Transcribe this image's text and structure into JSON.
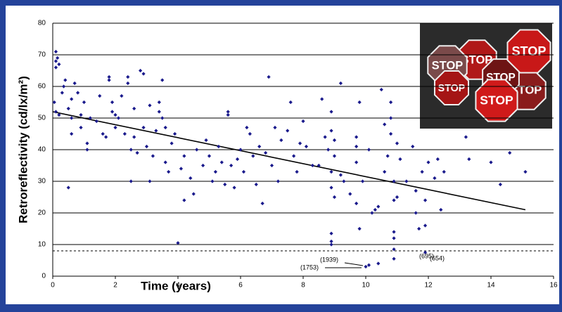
{
  "chart_data": {
    "type": "scatter",
    "x_label": "Time (years)",
    "y_label": "Retroreflectivity (cd/lx/m²)",
    "x": [
      0.1,
      0.15,
      0.1,
      0.2,
      0.1,
      0.05,
      0.1,
      0.2,
      0.3,
      0.35,
      0.4,
      0.5,
      0.5,
      0.6,
      0.6,
      0.6,
      0.7,
      0.8,
      0.9,
      0.9,
      1.0,
      1.1,
      1.1,
      1.2,
      1.4,
      1.5,
      1.6,
      1.7,
      1.8,
      1.8,
      1.9,
      1.9,
      2.0,
      2.0,
      2.1,
      2.2,
      2.3,
      2.4,
      2.4,
      2.5,
      2.5,
      2.6,
      2.6,
      2.7,
      2.8,
      2.9,
      2.9,
      3.0,
      3.1,
      3.1,
      3.2,
      3.3,
      3.4,
      3.4,
      3.5,
      3.5,
      3.6,
      3.6,
      3.7,
      3.8,
      3.9,
      4.0,
      4.1,
      4.2,
      4.2,
      4.4,
      4.5,
      4.6,
      4.8,
      4.9,
      5.0,
      5.1,
      5.2,
      5.3,
      5.4,
      5.5,
      5.6,
      5.6,
      5.7,
      5.8,
      5.9,
      6.0,
      6.1,
      6.2,
      6.3,
      6.4,
      6.5,
      6.6,
      6.7,
      6.8,
      6.9,
      7.0,
      7.1,
      7.2,
      7.3,
      7.5,
      7.6,
      7.7,
      7.8,
      7.9,
      8.0,
      8.1,
      8.3,
      8.5,
      8.6,
      8.7,
      8.8,
      8.9,
      8.9,
      8.9,
      8.9,
      8.9,
      8.9,
      8.9,
      9.0,
      9.0,
      9.0,
      9.2,
      9.2,
      9.3,
      9.5,
      9.7,
      9.7,
      9.7,
      9.7,
      9.8,
      9.8,
      9.9,
      10.1,
      10.2,
      10.3,
      10.4,
      10.4,
      10.5,
      10.6,
      10.6,
      10.7,
      10.8,
      10.8,
      10.8,
      10.9,
      10.9,
      10.9,
      10.9,
      10.9,
      10.9,
      11.0,
      11.0,
      11.1,
      11.3,
      11.5,
      11.6,
      11.6,
      11.7,
      11.8,
      11.9,
      11.9,
      11.9,
      12.0,
      12.2,
      12.3,
      12.4,
      12.5,
      13.2,
      13.3,
      14.0,
      14.3,
      14.6,
      15.1,
      10.1,
      10.0
    ],
    "values": [
      71,
      69,
      68,
      67,
      66,
      55,
      52,
      51,
      58,
      60,
      62,
      53,
      28,
      45,
      50,
      56,
      61,
      58,
      47,
      51,
      55,
      40,
      42,
      50,
      49,
      57,
      45,
      44,
      63,
      62,
      55,
      52,
      51,
      47,
      50,
      57,
      45,
      63,
      61,
      40,
      30,
      53,
      44,
      39,
      65,
      64,
      47,
      41,
      54,
      30,
      38,
      46,
      52,
      55,
      62,
      50,
      47,
      36,
      33,
      42,
      45,
      10.5,
      34,
      24,
      38,
      31,
      26,
      40,
      35,
      43,
      38,
      30,
      33,
      41,
      36,
      29,
      51,
      52,
      35,
      28,
      37,
      40,
      33,
      47,
      45,
      38,
      29,
      41,
      23,
      39,
      63,
      35,
      47,
      30,
      43,
      46,
      55,
      38,
      33,
      42,
      49,
      41,
      35,
      35,
      56,
      44,
      40,
      52,
      46,
      33,
      28,
      13.5,
      11,
      10,
      38,
      43,
      25,
      61,
      32,
      30,
      26,
      44,
      41,
      36,
      23,
      15,
      55,
      30,
      40,
      20,
      21,
      22,
      4,
      59,
      48,
      33,
      38,
      55,
      50,
      45,
      30,
      24,
      14,
      12,
      8.5,
      5.5,
      42,
      25,
      37,
      30,
      41,
      27,
      20,
      15,
      33,
      24,
      16,
      7.5,
      36,
      31,
      37,
      21,
      33,
      44,
      37,
      36,
      29,
      39,
      33,
      3.5,
      3
    ],
    "color": "#1a1a8c",
    "trend": {
      "x": [
        0,
        15.1
      ],
      "y": [
        52,
        21
      ]
    },
    "threshold": 8,
    "annotations": [
      "(1939)",
      "(1753)",
      "(654)",
      "(695)"
    ],
    "inset_text": "STOP",
    "xlim": [
      0,
      16
    ],
    "xticks": [
      0,
      2,
      4,
      6,
      8,
      10,
      12,
      14,
      16
    ],
    "ylim": [
      0,
      80
    ],
    "yticks": [
      0,
      10,
      20,
      30,
      40,
      50,
      60,
      70,
      80
    ],
    "grid": true
  }
}
